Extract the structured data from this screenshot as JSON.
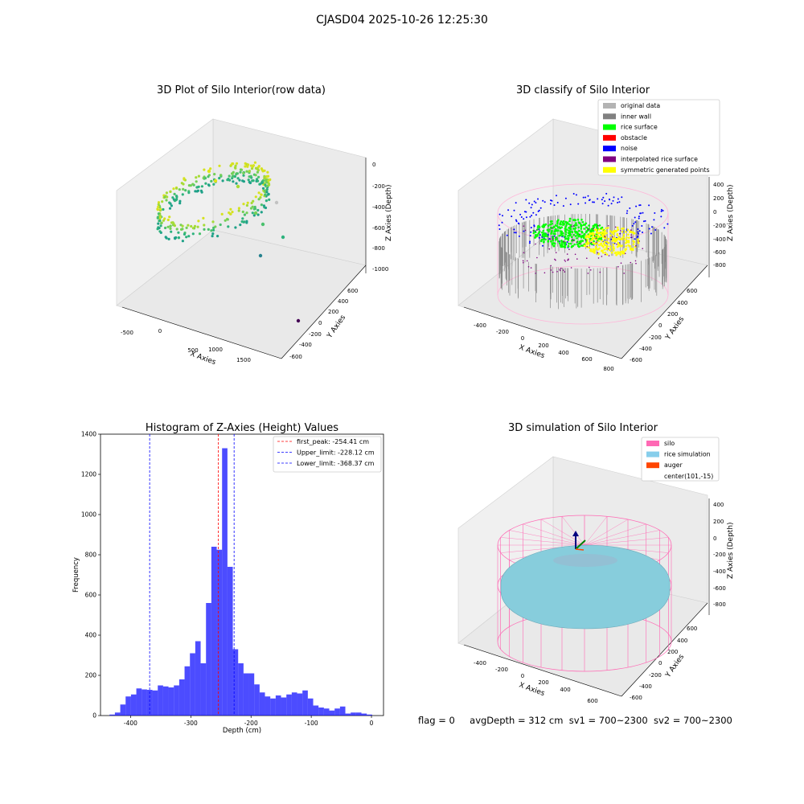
{
  "figure": {
    "suptitle": "CJASD04 2025-10-26 12:25:30"
  },
  "footer": {
    "flag": "flag = 0",
    "avg_depth": "avgDepth = 312 cm",
    "sv1": "sv1 = 700~2300",
    "sv2": "sv2 = 700~2300"
  },
  "panels": {
    "raw": {
      "title": "3D Plot of Silo Interior(row data)",
      "xlabel": "X Axies",
      "ylabel": "Y Axies",
      "zlabel": "Z Axies (Depth)",
      "xticks": [
        "-500",
        "0",
        "500",
        "1000",
        "1500"
      ],
      "yticks": [
        "-600",
        "-400",
        "-200",
        "0",
        "200",
        "400",
        "600"
      ],
      "zticks": [
        "0",
        "-200",
        "-400",
        "-600",
        "-800",
        "-1000"
      ]
    },
    "classify": {
      "title": "3D classify of Silo Interior",
      "xlabel": "X Axies",
      "ylabel": "Y Axies",
      "zlabel": "Z Axies (Depth)",
      "xticks": [
        "-400",
        "-200",
        "0",
        "200",
        "400",
        "600",
        "800"
      ],
      "yticks": [
        "-600",
        "-400",
        "-200",
        "0",
        "200",
        "400",
        "600"
      ],
      "zticks": [
        "400",
        "200",
        "0",
        "-200",
        "-400",
        "-600",
        "-800"
      ],
      "legend": [
        {
          "label": "original data",
          "color": "#b3b3b3"
        },
        {
          "label": "inner wall",
          "color": "#808080"
        },
        {
          "label": "rice surface",
          "color": "#00ff00"
        },
        {
          "label": "obstacle",
          "color": "#ff0000"
        },
        {
          "label": "noise",
          "color": "#0000ff"
        },
        {
          "label": "interpolated rice surface",
          "color": "#800080"
        },
        {
          "label": "symmetric generated points",
          "color": "#ffff00"
        }
      ]
    },
    "simulation": {
      "title": "3D simulation of Silo Interior",
      "xlabel": "X Axies",
      "ylabel": "Y Axies",
      "zlabel": "Z Axies (Depth)",
      "xticks": [
        "-400",
        "-200",
        "0",
        "200",
        "400",
        "600"
      ],
      "yticks": [
        "-600",
        "-400",
        "-200",
        "0",
        "200",
        "400",
        "600"
      ],
      "zticks": [
        "400",
        "200",
        "0",
        "-200",
        "-400",
        "-600",
        "-800"
      ],
      "legend": [
        {
          "label": "silo",
          "color": "#ff69b4"
        },
        {
          "label": "rice simulation",
          "color": "#87ceeb"
        },
        {
          "label": "auger",
          "color": "#ff4500"
        },
        {
          "label": "center(101,-15)",
          "color": ""
        }
      ]
    }
  },
  "chart_data": {
    "type": "bar",
    "title": "Histogram of Z-Axies (Height) Values",
    "xlabel": "Depth (cm)",
    "ylabel": "Frequency",
    "xlim": [
      -450,
      20
    ],
    "ylim": [
      0,
      1400
    ],
    "xticks": [
      -400,
      -300,
      -200,
      -100,
      0
    ],
    "yticks": [
      0,
      200,
      400,
      600,
      800,
      1000,
      1200,
      1400
    ],
    "bar_color": "#0000ff",
    "bin_start": -435,
    "bin_width": 8.9,
    "values": [
      5,
      15,
      55,
      95,
      105,
      135,
      130,
      128,
      125,
      150,
      145,
      140,
      150,
      180,
      245,
      310,
      370,
      260,
      560,
      840,
      825,
      1330,
      740,
      330,
      260,
      210,
      210,
      155,
      115,
      95,
      85,
      100,
      90,
      105,
      115,
      110,
      125,
      85,
      50,
      40,
      35,
      25,
      35,
      45,
      10,
      15,
      15,
      10,
      5
    ],
    "vlines": [
      {
        "name": "first_peak: -254.41 cm",
        "x": -254.41,
        "color": "#ff0000"
      },
      {
        "name": "Upper_limit: -228.12 cm",
        "x": -228.12,
        "color": "#0000ff"
      },
      {
        "name": "Lower_limit: -368.37 cm",
        "x": -368.37,
        "color": "#0000ff"
      }
    ],
    "legend_position": "top-right"
  }
}
